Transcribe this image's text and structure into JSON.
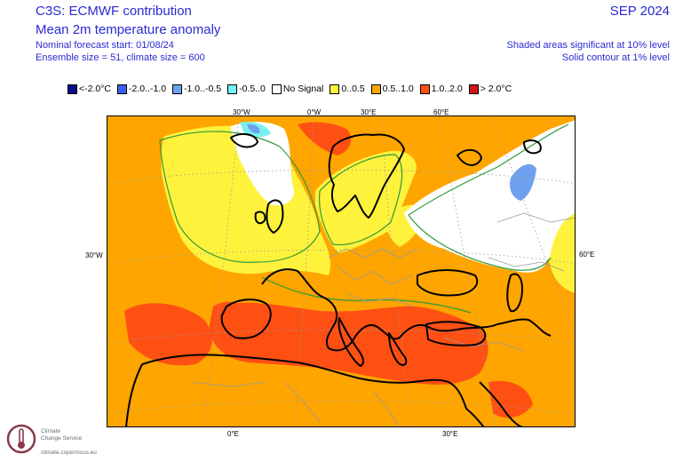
{
  "header": {
    "title_line1": "C3S: ECMWF contribution",
    "title_line2": "Mean 2m temperature anomaly",
    "forecast_start": "Nominal forecast start: 01/08/24",
    "ensemble": "Ensemble size = 51, climate size = 600",
    "period": "SEP 2024",
    "significance_shaded": "Shaded areas significant at 10% level",
    "significance_contour": "Solid contour at 1% level"
  },
  "legend": [
    {
      "label": "<-2.0°C",
      "color": "#0a0a8c"
    },
    {
      "label": "-2.0..-1.0",
      "color": "#3c5ef0"
    },
    {
      "label": "-1.0..-0.5",
      "color": "#6ea0f0"
    },
    {
      "label": "-0.5..0",
      "color": "#78f0f0"
    },
    {
      "label": "No Signal",
      "color": "#ffffff"
    },
    {
      "label": "0..0.5",
      "color": "#fff23c"
    },
    {
      "label": "0.5..1.0",
      "color": "#ffa500"
    },
    {
      "label": "1.0..2.0",
      "color": "#ff5014"
    },
    {
      "label": "> 2.0°C",
      "color": "#d2141e"
    }
  ],
  "grid_labels": {
    "top": [
      "30°W",
      "0°W",
      "30°E",
      "60°E"
    ],
    "left": "30°W",
    "right": "60°E",
    "bottom": [
      "0°E",
      "30°E"
    ]
  },
  "logo": {
    "name_line1": "Climate",
    "name_line2": "Change Service",
    "url": "climate.copernicus.eu"
  }
}
